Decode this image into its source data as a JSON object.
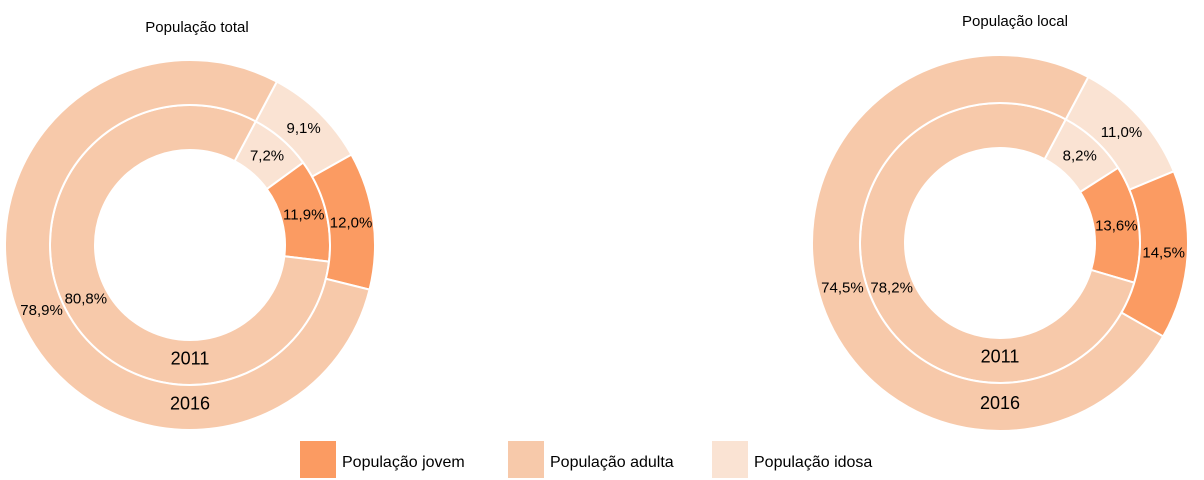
{
  "legend": [
    {
      "name": "População jovem",
      "color": "#fb9b62"
    },
    {
      "name": "População adulta",
      "color": "#f7c9aa"
    },
    {
      "name": "População idosa",
      "color": "#fae3d3"
    }
  ],
  "chart_data": [
    {
      "type": "donut",
      "title": "População total",
      "series": [
        {
          "name": "2011",
          "values": [
            11.9,
            80.8,
            7.2
          ],
          "value_labels": [
            "11,9%",
            "80,8%",
            "7,2%"
          ]
        },
        {
          "name": "2016",
          "values": [
            12.0,
            78.9,
            9.1
          ],
          "value_labels": [
            "12,0%",
            "78,9%",
            "9,1%"
          ]
        }
      ]
    },
    {
      "type": "donut",
      "title": "População local",
      "series": [
        {
          "name": "2011",
          "values": [
            13.6,
            78.2,
            8.2
          ],
          "value_labels": [
            "13,6%",
            "78,2%",
            "8,2%"
          ]
        },
        {
          "name": "2016",
          "values": [
            14.5,
            74.5,
            11.0
          ],
          "value_labels": [
            "14,5%",
            "74,5%",
            "11,0%"
          ]
        }
      ]
    }
  ]
}
